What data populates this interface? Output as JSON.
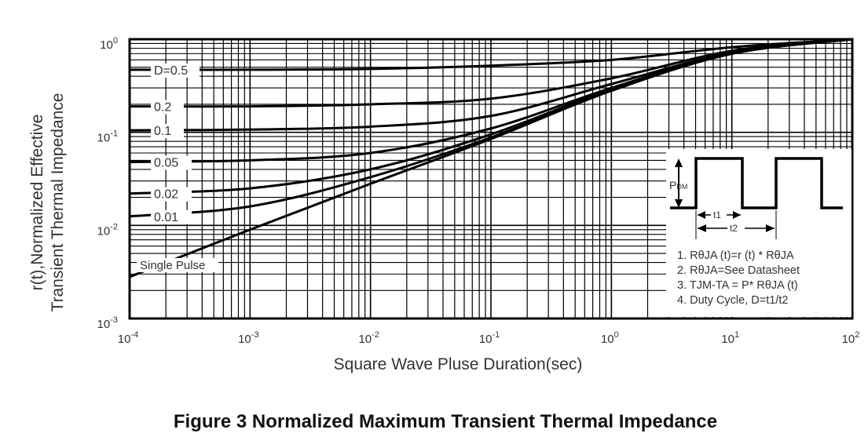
{
  "chart_data": {
    "type": "line",
    "title": "Figure 3 Normalized Maximum Transient Thermal Impedance",
    "xlabel": "Square Wave Pluse Duration(sec)",
    "ylabel": [
      "r(t),Normalized Effective",
      "Transient Thermal Impedance"
    ],
    "xscale": "log",
    "yscale": "log",
    "xlim": [
      0.0001,
      100
    ],
    "ylim": [
      0.001,
      1
    ],
    "grid": true,
    "x_ticks": [
      {
        "base": "10",
        "exp": "-4"
      },
      {
        "base": "10",
        "exp": "-3"
      },
      {
        "base": "10",
        "exp": "-2"
      },
      {
        "base": "10",
        "exp": "-1"
      },
      {
        "base": "10",
        "exp": "0"
      },
      {
        "base": "10",
        "exp": "1"
      },
      {
        "base": "10",
        "exp": "2"
      }
    ],
    "y_ticks": [
      {
        "base": "10",
        "exp": "0"
      },
      {
        "base": "10",
        "exp": "-1"
      },
      {
        "base": "10",
        "exp": "-2"
      },
      {
        "base": "10",
        "exp": "-3"
      }
    ],
    "x": [
      0.0001,
      0.001,
      0.01,
      0.1,
      1,
      10,
      100
    ],
    "series": [
      {
        "name": "D=0.5",
        "values": [
          0.47,
          0.47,
          0.48,
          0.52,
          0.6,
          0.82,
          1.0
        ]
      },
      {
        "name": "0.2",
        "values": [
          0.19,
          0.19,
          0.2,
          0.23,
          0.38,
          0.75,
          1.0
        ]
      },
      {
        "name": "0.1",
        "values": [
          0.105,
          0.107,
          0.115,
          0.15,
          0.33,
          0.72,
          1.0
        ]
      },
      {
        "name": "0.05",
        "values": [
          0.048,
          0.05,
          0.06,
          0.11,
          0.3,
          0.71,
          1.0
        ]
      },
      {
        "name": "0.02",
        "values": [
          0.022,
          0.025,
          0.04,
          0.095,
          0.29,
          0.7,
          1.0
        ]
      },
      {
        "name": "0.01",
        "values": [
          0.0125,
          0.016,
          0.033,
          0.088,
          0.28,
          0.7,
          1.0
        ]
      },
      {
        "name": "Single Pulse",
        "values": [
          0.0028,
          0.009,
          0.028,
          0.085,
          0.28,
          0.7,
          1.0
        ]
      }
    ],
    "inset": {
      "pdm_label": "P",
      "pdm_sub": "DM",
      "t1_label": "t1",
      "t2_label": "t2",
      "notes": [
        "1. RθJA (t)=r (t) * RθJA",
        "2. RθJA=See Datasheet",
        "3. TJM-TA = P* RθJA (t)",
        "4. Duty Cycle, D=t1/t2"
      ]
    }
  }
}
